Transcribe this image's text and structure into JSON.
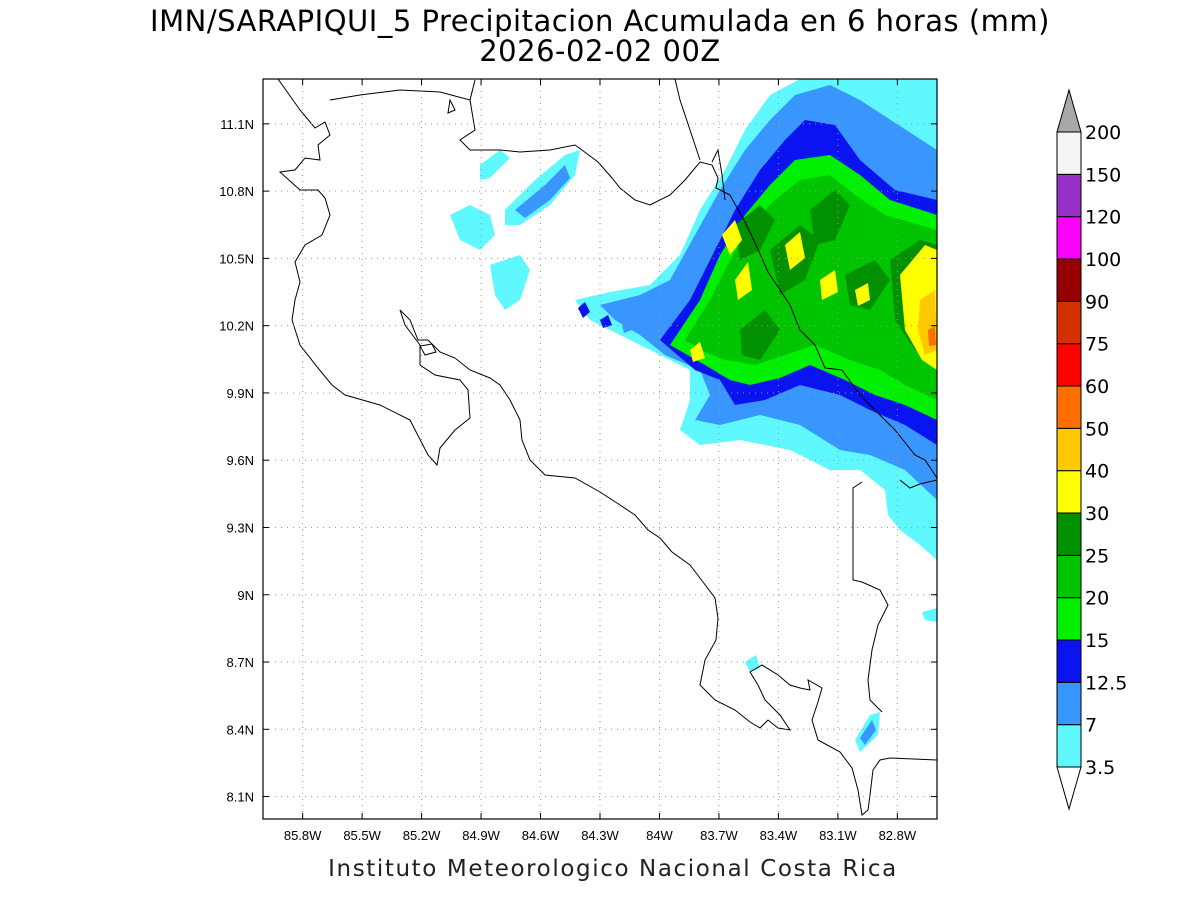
{
  "title": {
    "line1": "IMN/SARAPIQUI_5 Precipitacion Acumulada en 6 horas (mm)",
    "line2": "2026-02-02 00Z"
  },
  "footer": "Instituto Meteorologico Nacional Costa Rica",
  "map": {
    "lon_range": [
      -86.0,
      -82.6
    ],
    "lat_range": [
      8.0,
      11.3
    ],
    "x_ticks": [
      "85.8W",
      "85.5W",
      "85.2W",
      "84.9W",
      "84.6W",
      "84.3W",
      "84W",
      "83.7W",
      "83.4W",
      "83.1W",
      "82.8W"
    ],
    "y_ticks": [
      "11.1N",
      "10.8N",
      "10.5N",
      "10.2N",
      "9.9N",
      "9.6N",
      "9.3N",
      "9N",
      "8.7N",
      "8.4N",
      "8.1N"
    ],
    "grid": true
  },
  "colorbar": {
    "levels": [
      "3.5",
      "7",
      "12.5",
      "15",
      "20",
      "25",
      "30",
      "40",
      "50",
      "60",
      "75",
      "90",
      "100",
      "120",
      "150",
      "200"
    ],
    "colors": [
      "#ffffff",
      "#5ff8ff",
      "#3a96ff",
      "#0a14f0",
      "#00f000",
      "#00c400",
      "#009000",
      "#ffff00",
      "#ffc800",
      "#ff6e00",
      "#ff0000",
      "#d23200",
      "#960000",
      "#ff00ff",
      "#9632c8",
      "#f4f4f4",
      "#a8a8a8"
    ]
  }
}
